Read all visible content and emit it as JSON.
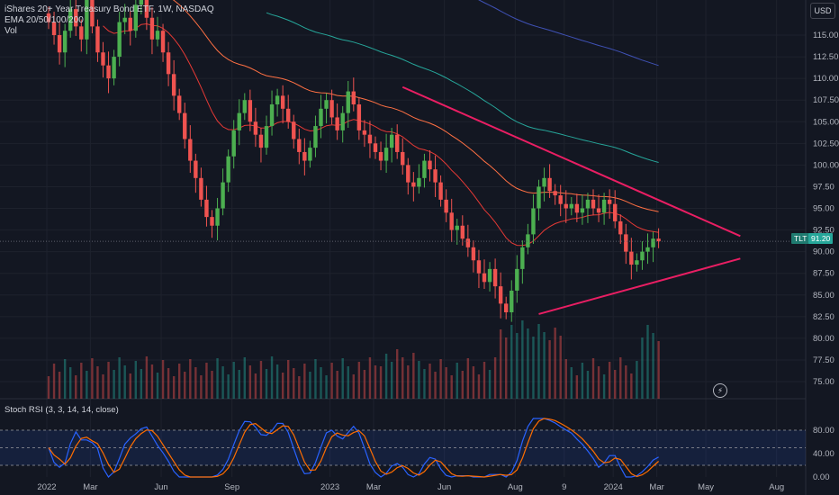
{
  "legend": {
    "title": "iShares 20+ Year Treasury Bond ETF, 1W, NASDAQ",
    "ema": "EMA 20/50/100/200",
    "vol": "Vol"
  },
  "rsi_legend": "Stoch RSI (3, 3, 14, 14, close)",
  "currency": "USD",
  "price_badge": {
    "symbol": "TLT",
    "value": "91.20"
  },
  "colors": {
    "up": "#26a69a",
    "up_bright": "#4caf50",
    "down": "#ef5350",
    "trendline": "#e91e63",
    "ema20": "#e53935",
    "ema50": "#ff7043",
    "ema100": "#26a69a",
    "ema200": "#3f51b5",
    "rsi_k": "#2962ff",
    "rsi_d": "#ff6d00"
  },
  "chart_data": {
    "type": "candlestick",
    "price_axis": {
      "min": 73,
      "max": 120,
      "ticks": [
        "115.00",
        "112.50",
        "110.00",
        "107.50",
        "105.00",
        "102.50",
        "100.00",
        "97.50",
        "95.00",
        "92.50",
        "90.00",
        "87.50",
        "85.00",
        "82.50",
        "80.00",
        "77.50",
        "75.00"
      ]
    },
    "time_axis": {
      "labels": [
        {
          "week": 0,
          "text": "2022"
        },
        {
          "week": 8,
          "text": "Mar"
        },
        {
          "week": 21,
          "text": "Jun"
        },
        {
          "week": 34,
          "text": "Sep"
        },
        {
          "week": 52,
          "text": "2023"
        },
        {
          "week": 60,
          "text": "Mar"
        },
        {
          "week": 73,
          "text": "Jun"
        },
        {
          "week": 86,
          "text": "Aug"
        },
        {
          "week": 95,
          "text": "9"
        },
        {
          "week": 104,
          "text": "2024"
        },
        {
          "week": 112,
          "text": "Mar"
        },
        {
          "week": 121,
          "text": "May"
        },
        {
          "week": 134,
          "text": "Aug"
        }
      ]
    },
    "closes": [
      116.5,
      115.0,
      113.0,
      115.5,
      118.0,
      116.0,
      114.5,
      119.5,
      116.0,
      113.0,
      111.5,
      110.0,
      112.5,
      116.5,
      117.0,
      115.5,
      118.5,
      120.5,
      117.0,
      114.5,
      115.5,
      113.0,
      110.5,
      108.0,
      106.0,
      103.0,
      100.5,
      98.5,
      96.0,
      94.0,
      93.0,
      95.0,
      98.0,
      101.0,
      104.0,
      106.0,
      107.5,
      105.0,
      103.5,
      102.0,
      104.5,
      107.0,
      108.0,
      106.5,
      105.0,
      103.0,
      101.5,
      100.5,
      102.0,
      104.5,
      106.5,
      107.5,
      105.5,
      104.0,
      106.0,
      108.5,
      107.0,
      104.0,
      103.5,
      102.5,
      101.5,
      100.5,
      102.0,
      103.5,
      101.5,
      100.0,
      98.0,
      97.5,
      98.5,
      100.5,
      99.5,
      98.0,
      96.0,
      94.5,
      92.5,
      93.0,
      91.5,
      90.5,
      89.0,
      87.5,
      86.5,
      88.0,
      86.0,
      84.0,
      83.0,
      85.5,
      88.0,
      90.5,
      92.0,
      95.0,
      97.5,
      98.5,
      97.0,
      96.5,
      95.5,
      95.0,
      95.5,
      94.5,
      95.0,
      96.0,
      95.0,
      94.5,
      96.0,
      95.5,
      93.5,
      92.0,
      90.0,
      88.5,
      89.0,
      90.0,
      90.5,
      91.5,
      91.2
    ],
    "ema20_text": "EMA 20",
    "trendlines": [
      {
        "from": {
          "week": 65,
          "price": 109.0
        },
        "to": {
          "week": 127,
          "price": 91.8
        }
      },
      {
        "from": {
          "week": 90,
          "price": 82.8
        },
        "to": {
          "week": 127,
          "price": 89.2
        }
      }
    ],
    "stoch_rsi": {
      "ticks": [
        "80.00",
        "40.00",
        "0.00"
      ],
      "bands": [
        80,
        20
      ]
    },
    "last_price": 91.2
  }
}
